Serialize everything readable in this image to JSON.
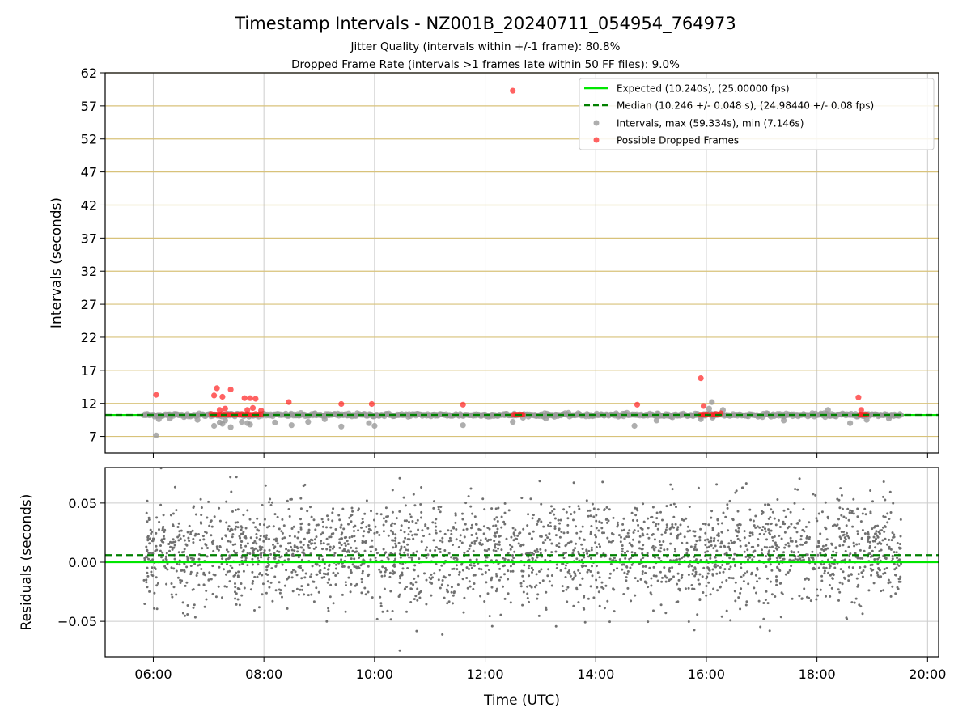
{
  "title": "Timestamp Intervals - NZ001B_20240711_054954_764973",
  "subtitle_1": "Jitter Quality (intervals within +/-1 frame): 80.8%",
  "subtitle_2": "Dropped Frame Rate (intervals >1 frames late within 50 FF files): 9.0%",
  "colors": {
    "expected": "#00e600",
    "median": "#008000",
    "intervals": "#9a9a9a",
    "dropped": "#ff2020",
    "residuals": "#707070",
    "hgrid_top": "#d8c27a",
    "grid": "#cccccc"
  },
  "chart_data": [
    {
      "type": "scatter",
      "panel": "top",
      "ylabel": "Intervals (seconds)",
      "xlim": [
        5.13,
        20.2
      ],
      "ylim": [
        4.5,
        62
      ],
      "xticks": [
        6,
        8,
        10,
        12,
        14,
        16,
        18,
        20
      ],
      "yticks": [
        7,
        12,
        17,
        22,
        27,
        32,
        37,
        42,
        47,
        52,
        57,
        62
      ],
      "ytick_labels": [
        "7",
        "12",
        "17",
        "22",
        "27",
        "32",
        "37",
        "42",
        "47",
        "52",
        "57",
        "62"
      ],
      "grid": true,
      "legend_position": "top-right",
      "legend": [
        "Expected (10.240s), (25.00000 fps)",
        "Median (10.246 +/- 0.048 s), (24.98440 +/- 0.08 fps)",
        "Intervals, max (59.334s), min (7.146s)",
        "Possible Dropped Frames"
      ],
      "expected_line": 10.24,
      "median_line": 10.246,
      "interval_range": [
        5.83,
        19.52
      ],
      "interval_base": 10.24,
      "outliers": [
        [
          6.05,
          7.15
        ],
        [
          6.1,
          9.6
        ],
        [
          6.3,
          9.7
        ],
        [
          6.8,
          9.5
        ],
        [
          7.1,
          8.6
        ],
        [
          7.2,
          9.1
        ],
        [
          7.25,
          8.9
        ],
        [
          7.3,
          9.4
        ],
        [
          7.4,
          8.4
        ],
        [
          7.6,
          9.2
        ],
        [
          7.7,
          9.0
        ],
        [
          7.75,
          8.8
        ],
        [
          8.2,
          9.1
        ],
        [
          8.5,
          8.7
        ],
        [
          8.8,
          9.2
        ],
        [
          9.1,
          9.6
        ],
        [
          9.4,
          8.5
        ],
        [
          9.9,
          9.0
        ],
        [
          10.0,
          8.6
        ],
        [
          11.6,
          8.7
        ],
        [
          12.5,
          9.2
        ],
        [
          13.1,
          9.7
        ],
        [
          14.7,
          8.6
        ],
        [
          15.1,
          9.4
        ],
        [
          15.9,
          9.6
        ],
        [
          16.05,
          11.2
        ],
        [
          16.1,
          12.2
        ],
        [
          16.3,
          11.0
        ],
        [
          17.4,
          9.4
        ],
        [
          18.2,
          11.0
        ],
        [
          18.6,
          9.0
        ],
        [
          18.9,
          9.5
        ],
        [
          19.3,
          9.7
        ]
      ],
      "dropped_frames": [
        [
          6.05,
          13.3
        ],
        [
          7.1,
          13.2
        ],
        [
          7.15,
          14.3
        ],
        [
          7.25,
          13.0
        ],
        [
          7.4,
          14.1
        ],
        [
          7.65,
          12.8
        ],
        [
          7.75,
          12.8
        ],
        [
          7.85,
          12.7
        ],
        [
          7.2,
          11.0
        ],
        [
          7.3,
          11.2
        ],
        [
          7.7,
          11.0
        ],
        [
          7.8,
          11.3
        ],
        [
          7.95,
          10.9
        ],
        [
          7.05,
          10.4
        ],
        [
          7.1,
          10.3
        ],
        [
          7.15,
          10.3
        ],
        [
          7.2,
          10.3
        ],
        [
          7.25,
          10.4
        ],
        [
          7.3,
          10.3
        ],
        [
          7.35,
          10.3
        ],
        [
          7.4,
          10.3
        ],
        [
          7.45,
          10.3
        ],
        [
          7.5,
          10.3
        ],
        [
          7.55,
          10.3
        ],
        [
          7.6,
          10.4
        ],
        [
          7.65,
          10.3
        ],
        [
          7.7,
          10.3
        ],
        [
          7.75,
          10.3
        ],
        [
          7.8,
          10.3
        ],
        [
          7.85,
          10.4
        ],
        [
          7.9,
          10.3
        ],
        [
          7.95,
          10.3
        ],
        [
          8.45,
          12.2
        ],
        [
          9.4,
          11.9
        ],
        [
          9.95,
          11.9
        ],
        [
          11.6,
          11.8
        ],
        [
          12.52,
          10.3
        ],
        [
          12.56,
          10.3
        ],
        [
          12.6,
          10.3
        ],
        [
          12.64,
          10.3
        ],
        [
          12.68,
          10.3
        ],
        [
          12.5,
          59.3
        ],
        [
          14.75,
          11.8
        ],
        [
          15.9,
          15.8
        ],
        [
          15.95,
          11.6
        ],
        [
          15.9,
          10.3
        ],
        [
          15.94,
          10.3
        ],
        [
          15.98,
          10.3
        ],
        [
          16.02,
          10.3
        ],
        [
          16.1,
          10.3
        ],
        [
          16.14,
          10.3
        ],
        [
          16.18,
          10.4
        ],
        [
          16.22,
          10.3
        ],
        [
          16.26,
          10.5
        ],
        [
          18.75,
          12.9
        ],
        [
          18.8,
          11.0
        ],
        [
          18.78,
          10.3
        ],
        [
          18.82,
          10.3
        ],
        [
          18.86,
          10.3
        ],
        [
          18.9,
          10.3
        ]
      ]
    },
    {
      "type": "scatter",
      "panel": "bottom",
      "ylabel": "Residuals (seconds)",
      "xlabel": "Time (UTC)",
      "xlim": [
        5.13,
        20.2
      ],
      "ylim": [
        -0.08,
        0.08
      ],
      "xticks": [
        6,
        8,
        10,
        12,
        14,
        16,
        18,
        20
      ],
      "xtick_labels": [
        "06:00",
        "08:00",
        "10:00",
        "12:00",
        "14:00",
        "16:00",
        "18:00",
        "20:00"
      ],
      "yticks": [
        -0.05,
        0.0,
        0.05
      ],
      "ytick_labels": [
        "−0.05",
        "0.00",
        "0.05"
      ],
      "grid": true,
      "expected_line": 0.0,
      "median_line": 0.006,
      "residual_range": [
        5.83,
        19.52
      ],
      "residual_spread": 0.022
    }
  ]
}
